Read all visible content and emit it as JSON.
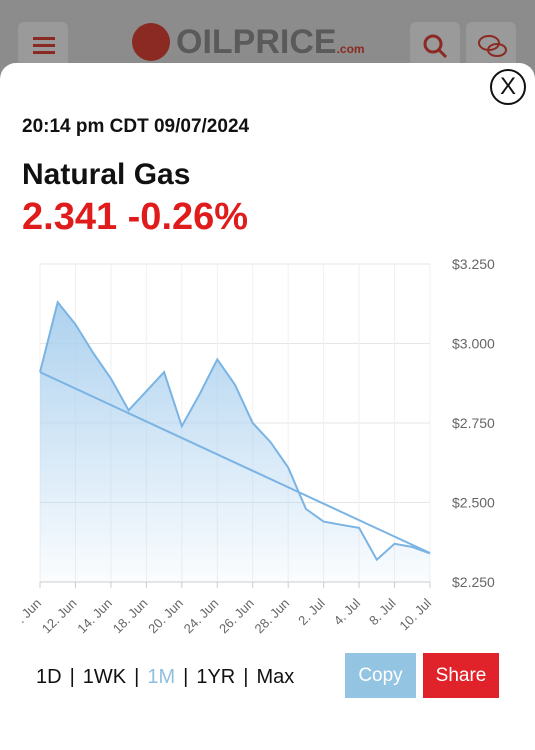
{
  "header": {
    "logo_main": "OILPRICE",
    "logo_suffix": ".com"
  },
  "quote": {
    "timestamp": "20:14 pm CDT 09/07/2024",
    "commodity": "Natural Gas",
    "price_change": "2.341 -0.26%"
  },
  "close_label": "X",
  "ranges": [
    "1D",
    "1WK",
    "1M",
    "1YR",
    "Max"
  ],
  "active_range": "1M",
  "buttons": {
    "copy": "Copy",
    "share": "Share"
  },
  "colors": {
    "price_down": "#e01b1b",
    "line": "#7ab4e4",
    "fill": "#a9cfee",
    "share": "#e0232a",
    "copy": "#93c4e2"
  },
  "chart_data": {
    "type": "area",
    "title": "",
    "xlabel": "",
    "ylabel": "",
    "x_tick_labels": [
      ". Jun",
      "12. Jun",
      "14. Jun",
      "18. Jun",
      "20. Jun",
      "24. Jun",
      "26. Jun",
      "28. Jun",
      "2. Jul",
      "4. Jul",
      "8. Jul",
      "10. Jul"
    ],
    "y_tick_labels": [
      "$3.250",
      "$3.000",
      "$2.750",
      "$2.500",
      "$2.250"
    ],
    "ylim": [
      2.25,
      3.25
    ],
    "grid": true,
    "series": [
      {
        "values": [
          2.91,
          3.13,
          3.06,
          2.97,
          2.89,
          2.79,
          2.85,
          2.91,
          2.74,
          2.84,
          2.95,
          2.87,
          2.75,
          2.69,
          2.61,
          2.48,
          2.44,
          2.43,
          2.42,
          2.32,
          2.37,
          2.36,
          2.34
        ]
      }
    ],
    "trendline": {
      "start": 2.91,
      "end": 2.341
    }
  }
}
